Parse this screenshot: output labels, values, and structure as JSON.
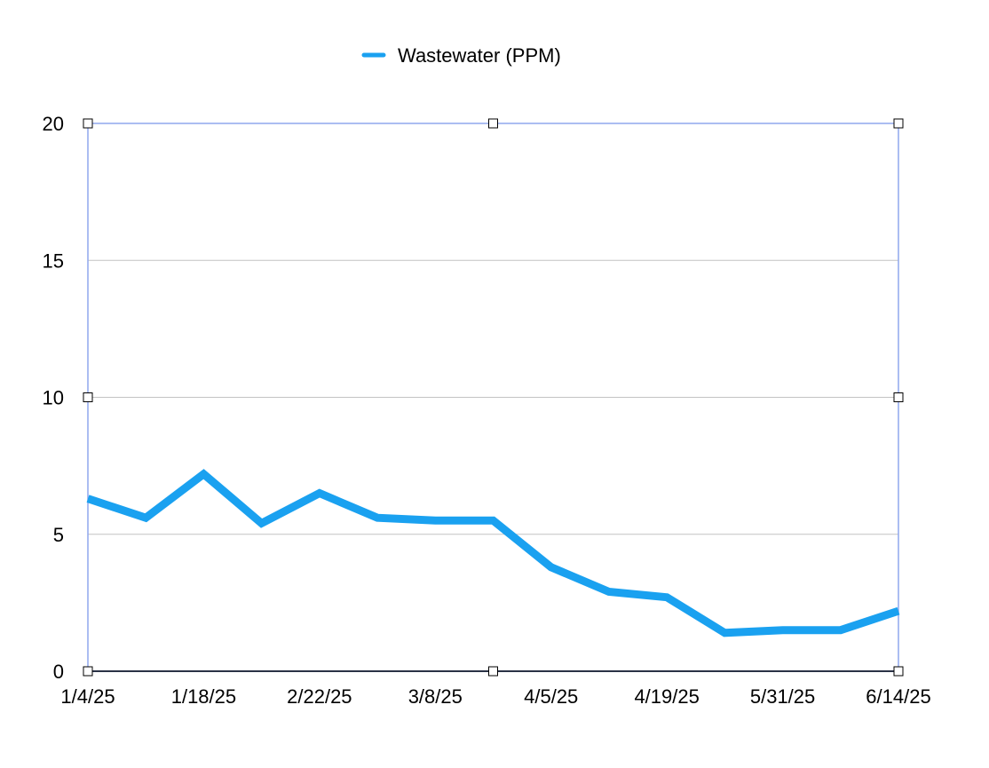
{
  "chart_data": {
    "type": "line",
    "title": "",
    "xlabel": "",
    "ylabel": "",
    "categories": [
      "1/4/25",
      "",
      "1/18/25",
      "",
      "2/22/25",
      "",
      "3/8/25",
      "",
      "4/5/25",
      "",
      "4/19/25",
      "",
      "5/31/25",
      "",
      "6/14/25"
    ],
    "series": [
      {
        "name": "Wastewater (PPM)",
        "color": "#1aa1f0",
        "values": [
          6.3,
          5.6,
          7.2,
          5.4,
          6.5,
          5.6,
          5.5,
          5.5,
          3.8,
          2.9,
          2.7,
          1.4,
          1.5,
          1.5,
          2.2
        ]
      }
    ],
    "ylim": [
      0,
      20
    ],
    "yticks": [
      0,
      5,
      10,
      15,
      20
    ],
    "grid": true,
    "legend": "top-center",
    "selection_color": "#8fa7ee"
  }
}
